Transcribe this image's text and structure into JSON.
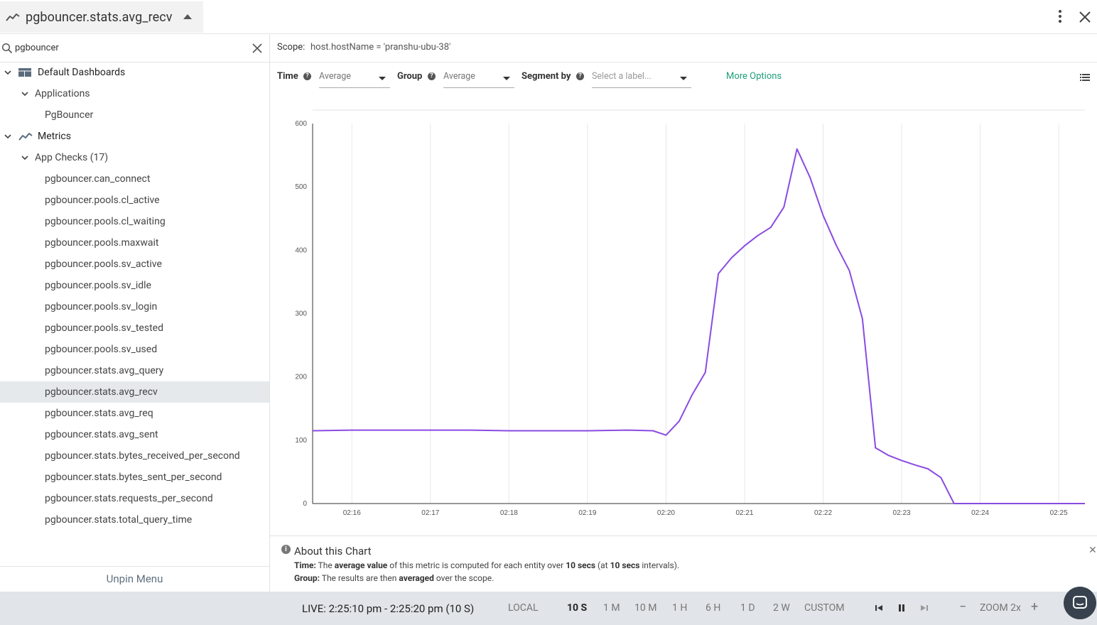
{
  "header": {
    "title": "pgbouncer.stats.avg_recv"
  },
  "sidebar": {
    "search_value": "pgbouncer",
    "tree": {
      "default_dashboards": "Default Dashboards",
      "applications": "Applications",
      "pgbouncer": "PgBouncer",
      "metrics": "Metrics",
      "app_checks": "App Checks (17)",
      "items": [
        "pgbouncer.can_connect",
        "pgbouncer.pools.cl_active",
        "pgbouncer.pools.cl_waiting",
        "pgbouncer.pools.maxwait",
        "pgbouncer.pools.sv_active",
        "pgbouncer.pools.sv_idle",
        "pgbouncer.pools.sv_login",
        "pgbouncer.pools.sv_tested",
        "pgbouncer.pools.sv_used",
        "pgbouncer.stats.avg_query",
        "pgbouncer.stats.avg_recv",
        "pgbouncer.stats.avg_req",
        "pgbouncer.stats.avg_sent",
        "pgbouncer.stats.bytes_received_per_second",
        "pgbouncer.stats.bytes_sent_per_second",
        "pgbouncer.stats.requests_per_second",
        "pgbouncer.stats.total_query_time"
      ],
      "selected_index": 10
    },
    "unpin_label": "Unpin Menu"
  },
  "scope": {
    "label": "Scope:",
    "value": "host.hostName = 'pranshu-ubu-38'"
  },
  "controls": {
    "time_label": "Time",
    "time_value": "Average",
    "group_label": "Group",
    "group_value": "Average",
    "segment_label": "Segment by",
    "segment_placeholder": "Select a label...",
    "more_options": "More Options"
  },
  "about": {
    "title": "About this Chart",
    "time_key": "Time:",
    "time_t1": "The",
    "time_b1": "average value",
    "time_t2": "of this metric is computed for each entity over",
    "time_b2": "10 secs",
    "time_t3": "(at",
    "time_b3": "10 secs",
    "time_t4": "intervals).",
    "group_key": "Group:",
    "group_t1": "The results are then",
    "group_b1": "averaged",
    "group_t2": "over the scope."
  },
  "bottom": {
    "live": "LIVE: 2:25:10 pm - 2:25:20 pm (10 S)",
    "local": "LOCAL",
    "ranges": [
      "10 S",
      "1 M",
      "10 M",
      "1 H",
      "6 H",
      "1 D",
      "2 W",
      "CUSTOM"
    ],
    "active_range": "10 S",
    "zoom": "ZOOM 2x"
  },
  "colors": {
    "series": "#8a4be2",
    "accent": "#1e9e78"
  },
  "chart_data": {
    "type": "line",
    "xlabel": "",
    "ylabel": "",
    "ylim": [
      0,
      600
    ],
    "yticks": [
      0,
      100,
      200,
      300,
      400,
      500,
      600
    ],
    "xlim": [
      "02:15:30",
      "02:25:20"
    ],
    "xticks": [
      "02:16",
      "02:17",
      "02:18",
      "02:19",
      "02:20",
      "02:21",
      "02:22",
      "02:23",
      "02:24",
      "02:25"
    ],
    "grid": true,
    "series": [
      {
        "x": [
          "02:15:30",
          "02:16:00",
          "02:16:30",
          "02:17:00",
          "02:17:30",
          "02:18:00",
          "02:18:30",
          "02:19:00",
          "02:19:30",
          "02:19:50",
          "02:20:00",
          "02:20:10",
          "02:20:20",
          "02:20:30",
          "02:20:40",
          "02:20:50",
          "02:21:00",
          "02:21:10",
          "02:21:20",
          "02:21:30",
          "02:21:40",
          "02:21:50",
          "02:22:00",
          "02:22:10",
          "02:22:20",
          "02:22:30",
          "02:22:40",
          "02:22:50",
          "02:23:00",
          "02:23:10",
          "02:23:20",
          "02:23:30",
          "02:23:40",
          "02:24:00",
          "02:25:00",
          "02:25:20"
        ],
        "y": [
          115,
          116,
          116,
          116,
          116,
          115,
          115,
          115,
          116,
          115,
          108,
          130,
          172,
          207,
          363,
          388,
          407,
          423,
          436,
          468,
          560,
          515,
          455,
          408,
          368,
          292,
          88,
          76,
          68,
          61,
          55,
          41,
          0,
          0,
          0,
          0
        ]
      }
    ]
  }
}
